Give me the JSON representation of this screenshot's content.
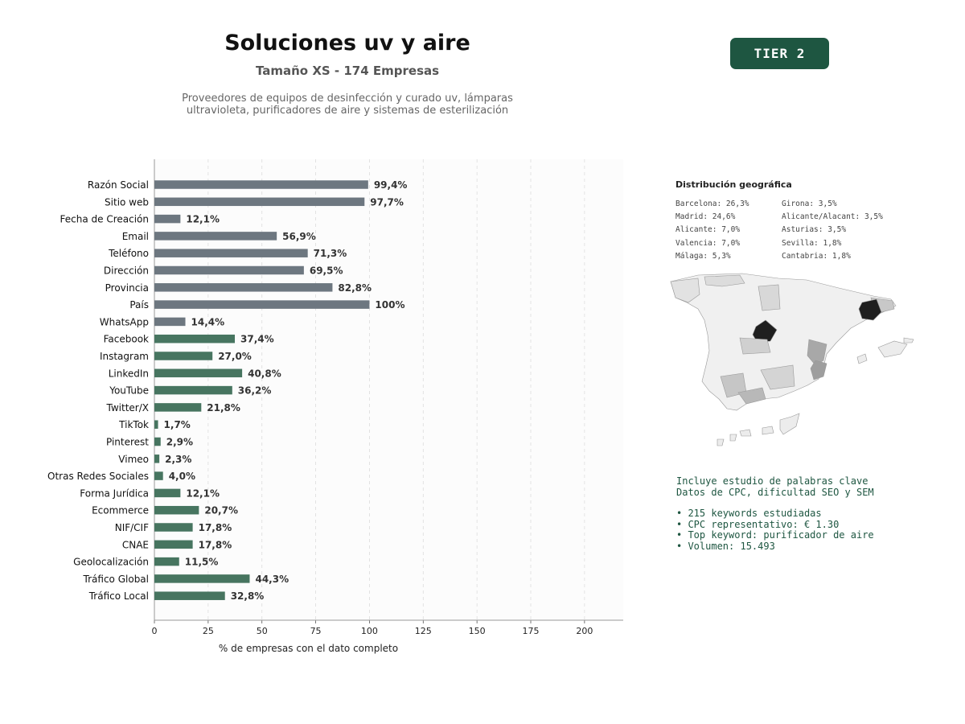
{
  "header": {
    "title": "Soluciones uv y aire",
    "subtitle": "Tamaño XS - 174 Empresas",
    "description_line1": "Proveedores de equipos de desinfección y curado uv, lámparas",
    "description_line2": "ultravioleta, purificadores de aire y sistemas de esterilización",
    "tier": "TIER 2"
  },
  "chart_data": {
    "type": "bar",
    "orientation": "horizontal",
    "xlabel": "% de empresas con el dato completo",
    "xlim": [
      0,
      218
    ],
    "xticks": [
      0,
      25,
      50,
      75,
      100,
      125,
      150,
      175,
      200
    ],
    "grid": "vertical dashed",
    "categories": [
      "Razón Social",
      "Sitio web",
      "Fecha de Creación",
      "Email",
      "Teléfono",
      "Dirección",
      "Provincia",
      "País",
      "WhatsApp",
      "Facebook",
      "Instagram",
      "LinkedIn",
      "YouTube",
      "Twitter/X",
      "TikTok",
      "Pinterest",
      "Vimeo",
      "Otras Redes Sociales",
      "Forma Jurídica",
      "Ecommerce",
      "NIF/CIF",
      "CNAE",
      "Geolocalización",
      "Tráfico Global",
      "Tráfico Local"
    ],
    "values": [
      99.4,
      97.7,
      12.1,
      56.9,
      71.3,
      69.5,
      82.8,
      100,
      14.4,
      37.4,
      27.0,
      40.8,
      36.2,
      21.8,
      1.7,
      2.9,
      2.3,
      4.0,
      12.1,
      20.7,
      17.8,
      17.8,
      11.5,
      44.3,
      32.8
    ],
    "labels": [
      "99,4%",
      "97,7%",
      "12,1%",
      "56,9%",
      "71,3%",
      "69,5%",
      "82,8%",
      "100%",
      "14,4%",
      "37,4%",
      "27,0%",
      "40,8%",
      "36,2%",
      "21,8%",
      "1,7%",
      "2,9%",
      "2,3%",
      "4,0%",
      "12,1%",
      "20,7%",
      "17,8%",
      "17,8%",
      "11,5%",
      "44,3%",
      "32,8%"
    ],
    "groups": [
      "gray",
      "gray",
      "gray",
      "gray",
      "gray",
      "gray",
      "gray",
      "gray",
      "gray",
      "green",
      "green",
      "green",
      "green",
      "green",
      "green",
      "green",
      "green",
      "green",
      "green",
      "green",
      "green",
      "green",
      "green",
      "green",
      "green"
    ],
    "colors": {
      "gray": "#6d7780",
      "green": "#477560"
    }
  },
  "geo": {
    "title": "Distribución geográfica",
    "col1": [
      "Barcelona: 26,3%",
      "Madrid: 24,6%",
      "Alicante: 7,0%",
      "Valencia: 7,0%",
      "Málaga: 5,3%"
    ],
    "col2": [
      "Girona: 3,5%",
      "Alicante/Alacant: 3,5%",
      "Asturias: 3,5%",
      "Sevilla: 1,8%",
      "Cantabria: 1,8%"
    ]
  },
  "keywords": {
    "line1": "Incluye estudio de palabras clave",
    "line2": "Datos de CPC, dificultad SEO y SEM",
    "bullets": [
      "• 215 keywords estudiadas",
      "• CPC representativo: € 1.30",
      "• Top keyword: purificador de aire",
      "• Volumen: 15.493"
    ]
  }
}
